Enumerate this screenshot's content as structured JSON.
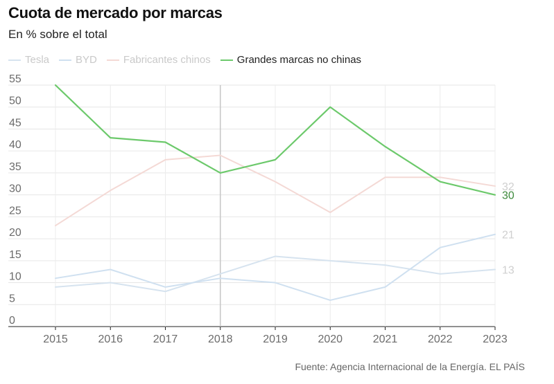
{
  "header": {
    "title": "Cuota de mercado por marcas",
    "subtitle": "En % sobre el total"
  },
  "footer": {
    "source": "Fuente: Agencia Internacional de la Energía. EL PAÍS"
  },
  "chart_data": {
    "type": "line",
    "title": "Cuota de mercado por marcas",
    "subtitle": "En % sobre el total",
    "xlabel": "",
    "ylabel": "",
    "x": [
      "2015",
      "2016",
      "2017",
      "2018",
      "2019",
      "2020",
      "2021",
      "2022",
      "2023"
    ],
    "ylim": [
      0,
      55
    ],
    "yticks": [
      0,
      5,
      10,
      15,
      20,
      25,
      30,
      35,
      40,
      45,
      50,
      55
    ],
    "grid": true,
    "legend_position": "top-left",
    "highlight_year": "2018",
    "series": [
      {
        "name": "Tesla",
        "color": "#d6e3ef",
        "faded": true,
        "values": [
          9,
          10,
          8,
          12,
          16,
          15,
          14,
          12,
          13
        ],
        "end_label": "13"
      },
      {
        "name": "BYD",
        "color": "#cfe0f0",
        "faded": true,
        "values": [
          11,
          13,
          9,
          11,
          10,
          6,
          9,
          18,
          21
        ],
        "end_label": "21"
      },
      {
        "name": "Fabricantes chinos",
        "color": "#f4d9d5",
        "faded": true,
        "values": [
          23,
          31,
          38,
          39,
          33,
          26,
          34,
          34,
          32
        ],
        "end_label": "32"
      },
      {
        "name": "Grandes marcas no chinas",
        "color": "#6cc96b",
        "faded": false,
        "values": [
          55,
          43,
          42,
          35,
          38,
          50,
          41,
          33,
          30
        ],
        "end_label": "30"
      }
    ]
  }
}
